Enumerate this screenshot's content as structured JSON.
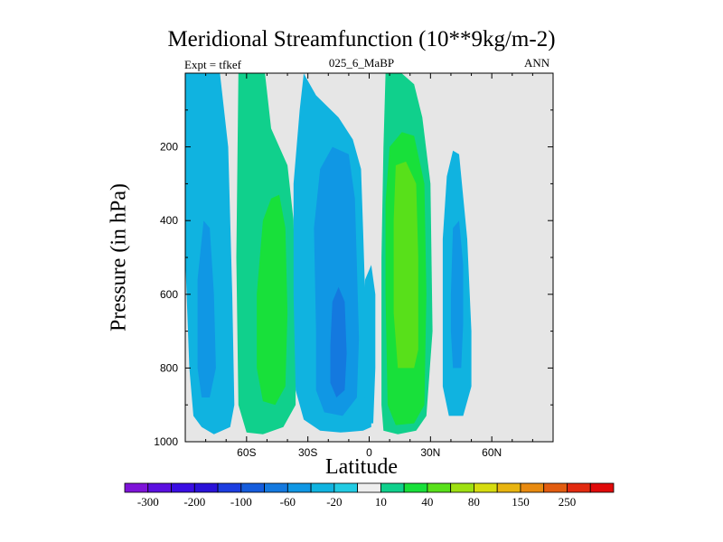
{
  "title": "Meridional Streamfunction (10**9kg/m-2)",
  "left_label": "Expt = tfkef",
  "center_label": "025_6_MaBP",
  "right_label": "ANN",
  "colors": {
    "background": "#ffffff",
    "plot_bg": "#e6e6e6",
    "axis": "#000000"
  },
  "chart_data": {
    "type": "filled-contour",
    "xlabel": "Latitude",
    "ylabel": "Pressure (in hPa)",
    "xlim": [
      -90,
      90
    ],
    "ylim": [
      1000,
      0
    ],
    "x_ticks": [
      {
        "value": -60,
        "label": "60S"
      },
      {
        "value": -30,
        "label": "30S"
      },
      {
        "value": 0,
        "label": "0"
      },
      {
        "value": 30,
        "label": "30N"
      },
      {
        "value": 60,
        "label": "60N"
      }
    ],
    "y_ticks": [
      {
        "value": 200,
        "label": "200"
      },
      {
        "value": 400,
        "label": "400"
      },
      {
        "value": 600,
        "label": "600"
      },
      {
        "value": 800,
        "label": "800"
      },
      {
        "value": 1000,
        "label": "1000"
      }
    ],
    "levels": [
      -300,
      -250,
      -200,
      -150,
      -100,
      -80,
      -60,
      -40,
      -20,
      -10,
      10,
      20,
      40,
      60,
      80,
      100,
      150,
      200,
      250,
      300
    ],
    "colorbar": {
      "colors": [
        "#7e13d8",
        "#5b10e0",
        "#3a0ee3",
        "#2a12d8",
        "#1c3de0",
        "#155cdc",
        "#1479df",
        "#1097e4",
        "#10b3e0",
        "#22cbe3",
        "#eeeeee",
        "#10d08c",
        "#18e03a",
        "#58e01a",
        "#9ee012",
        "#d6dc10",
        "#e8b410",
        "#e88a10",
        "#e25c10",
        "#e22a10",
        "#e00a0a"
      ],
      "labels": [
        "-300",
        "-200",
        "-100",
        "-60",
        "-20",
        "10",
        "40",
        "80",
        "150",
        "250"
      ]
    },
    "regions": [
      {
        "name": "sh-polar-cell",
        "level_color": "#10b3e0",
        "points": [
          [
            -90,
            1
          ],
          [
            -73,
            1
          ],
          [
            -69,
            200
          ],
          [
            -67,
            600
          ],
          [
            -66,
            900
          ],
          [
            -68,
            960
          ],
          [
            -76,
            980
          ],
          [
            -82,
            960
          ],
          [
            -86,
            930
          ],
          [
            -88,
            800
          ],
          [
            -90,
            500
          ]
        ]
      },
      {
        "name": "sh-polar-core",
        "level_color": "#1097e4",
        "points": [
          [
            -84,
            560
          ],
          [
            -81,
            400
          ],
          [
            -78,
            420
          ],
          [
            -76,
            600
          ],
          [
            -75,
            800
          ],
          [
            -78,
            880
          ],
          [
            -82,
            880
          ],
          [
            -84,
            800
          ]
        ]
      },
      {
        "name": "sh-ferrel-cell",
        "level_color": "#10d08c",
        "points": [
          [
            -64,
            1
          ],
          [
            -51,
            1
          ],
          [
            -48,
            150
          ],
          [
            -40,
            250
          ],
          [
            -37,
            400
          ],
          [
            -36,
            700
          ],
          [
            -36,
            900
          ],
          [
            -42,
            960
          ],
          [
            -52,
            980
          ],
          [
            -60,
            975
          ],
          [
            -64,
            900
          ],
          [
            -65,
            500
          ]
        ]
      },
      {
        "name": "sh-ferrel-core",
        "level_color": "#18e03a",
        "points": [
          [
            -55,
            600
          ],
          [
            -52,
            400
          ],
          [
            -48,
            340
          ],
          [
            -44,
            330
          ],
          [
            -41,
            420
          ],
          [
            -40,
            650
          ],
          [
            -41,
            850
          ],
          [
            -46,
            900
          ],
          [
            -52,
            890
          ],
          [
            -55,
            800
          ]
        ]
      },
      {
        "name": "sh-hadley-cell",
        "level_color": "#10b3e0",
        "points": [
          [
            -32,
            1
          ],
          [
            -26,
            60
          ],
          [
            -15,
            120
          ],
          [
            -8,
            180
          ],
          [
            -4,
            260
          ],
          [
            -3,
            420
          ],
          [
            -2,
            600
          ],
          [
            -1,
            760
          ],
          [
            1,
            900
          ],
          [
            1,
            960
          ],
          [
            -3,
            970
          ],
          [
            -14,
            975
          ],
          [
            -24,
            970
          ],
          [
            -32,
            940
          ],
          [
            -36,
            860
          ],
          [
            -37,
            600
          ],
          [
            -37,
            300
          ],
          [
            -34,
            100
          ]
        ]
      },
      {
        "name": "sh-hadley-mid",
        "level_color": "#1097e4",
        "points": [
          [
            -26,
            700
          ],
          [
            -27,
            420
          ],
          [
            -24,
            260
          ],
          [
            -18,
            200
          ],
          [
            -10,
            220
          ],
          [
            -7,
            340
          ],
          [
            -6,
            520
          ],
          [
            -5,
            720
          ],
          [
            -6,
            880
          ],
          [
            -13,
            930
          ],
          [
            -22,
            920
          ],
          [
            -26,
            860
          ]
        ]
      },
      {
        "name": "sh-hadley-core",
        "level_color": "#1479df",
        "points": [
          [
            -19,
            740
          ],
          [
            -18,
            620
          ],
          [
            -15,
            580
          ],
          [
            -12,
            620
          ],
          [
            -11,
            760
          ],
          [
            -12,
            860
          ],
          [
            -16,
            880
          ],
          [
            -19,
            840
          ]
        ]
      },
      {
        "name": "equator-strip",
        "level_color": "#10b3e0",
        "points": [
          [
            -3,
            660
          ],
          [
            -2,
            560
          ],
          [
            1,
            520
          ],
          [
            3,
            600
          ],
          [
            3,
            800
          ],
          [
            2,
            950
          ],
          [
            -1,
            950
          ],
          [
            -3,
            850
          ]
        ]
      },
      {
        "name": "nh-hadley-cell",
        "level_color": "#10d08c",
        "points": [
          [
            8,
            1
          ],
          [
            16,
            1
          ],
          [
            22,
            30
          ],
          [
            26,
            120
          ],
          [
            30,
            300
          ],
          [
            31,
            700
          ],
          [
            28,
            930
          ],
          [
            23,
            970
          ],
          [
            14,
            980
          ],
          [
            7,
            970
          ],
          [
            6,
            900
          ],
          [
            6,
            500
          ],
          [
            7,
            200
          ]
        ]
      },
      {
        "name": "nh-hadley-mid",
        "level_color": "#18e03a",
        "points": [
          [
            10,
            200
          ],
          [
            16,
            160
          ],
          [
            22,
            170
          ],
          [
            27,
            300
          ],
          [
            28,
            600
          ],
          [
            27,
            900
          ],
          [
            22,
            950
          ],
          [
            13,
            955
          ],
          [
            9,
            900
          ],
          [
            8,
            600
          ],
          [
            8,
            350
          ]
        ]
      },
      {
        "name": "nh-hadley-core",
        "level_color": "#58e01a",
        "points": [
          [
            13,
            250
          ],
          [
            18,
            240
          ],
          [
            23,
            300
          ],
          [
            24,
            500
          ],
          [
            24,
            750
          ],
          [
            22,
            800
          ],
          [
            14,
            800
          ],
          [
            12,
            650
          ],
          [
            12,
            400
          ]
        ]
      },
      {
        "name": "nh-ferrel-cell",
        "level_color": "#10b3e0",
        "points": [
          [
            36,
            450
          ],
          [
            38,
            280
          ],
          [
            41,
            210
          ],
          [
            44,
            220
          ],
          [
            48,
            450
          ],
          [
            50,
            700
          ],
          [
            50,
            850
          ],
          [
            46,
            930
          ],
          [
            39,
            930
          ],
          [
            36,
            850
          ]
        ]
      },
      {
        "name": "nh-ferrel-core",
        "level_color": "#1097e4",
        "points": [
          [
            40,
            600
          ],
          [
            41,
            420
          ],
          [
            44,
            400
          ],
          [
            46,
            520
          ],
          [
            46,
            680
          ],
          [
            45,
            800
          ],
          [
            41,
            800
          ],
          [
            40,
            700
          ]
        ]
      }
    ]
  },
  "colorbar_labels": [
    "-300",
    "-200",
    "-100",
    "-60",
    "-20",
    "10",
    "40",
    "80",
    "150",
    "250"
  ]
}
